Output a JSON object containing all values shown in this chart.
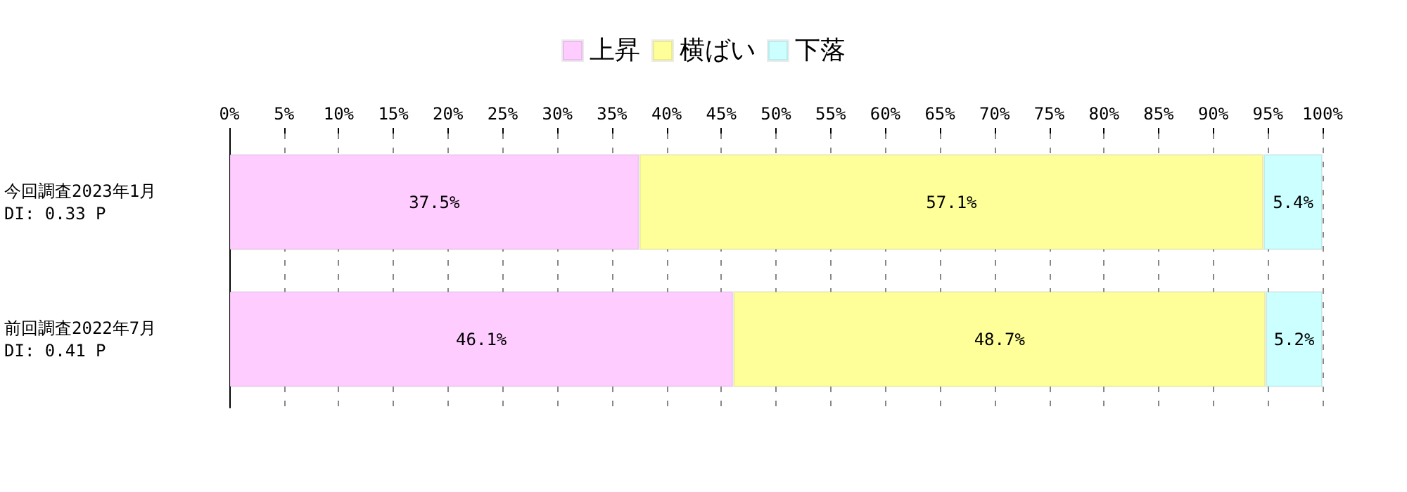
{
  "chart_data": {
    "type": "bar",
    "orientation": "horizontal",
    "stacked": true,
    "categories": [
      "今回調査2023年1月\nDI: 0.33 P",
      "前回調査2022年7月\nDI: 0.41 P"
    ],
    "series": [
      {
        "name": "上昇",
        "color": "#ffccff",
        "values": [
          37.5,
          46.1
        ],
        "value_labels": [
          "37.5%",
          "46.1%"
        ]
      },
      {
        "name": "横ばい",
        "color": "#ffff99",
        "values": [
          57.1,
          48.7
        ],
        "value_labels": [
          "57.1%",
          "48.7%"
        ]
      },
      {
        "name": "下落",
        "color": "#ccffff",
        "values": [
          5.4,
          5.2
        ],
        "value_labels": [
          "5.4%",
          "5.2%"
        ]
      }
    ],
    "xlim": [
      0,
      100
    ],
    "xticks": [
      {
        "value": 0,
        "label": "0%"
      },
      {
        "value": 5,
        "label": "5%"
      },
      {
        "value": 10,
        "label": "10%"
      },
      {
        "value": 15,
        "label": "15%"
      },
      {
        "value": 20,
        "label": "20%"
      },
      {
        "value": 25,
        "label": "25%"
      },
      {
        "value": 30,
        "label": "30%"
      },
      {
        "value": 35,
        "label": "35%"
      },
      {
        "value": 40,
        "label": "40%"
      },
      {
        "value": 45,
        "label": "45%"
      },
      {
        "value": 50,
        "label": "50%"
      },
      {
        "value": 55,
        "label": "55%"
      },
      {
        "value": 60,
        "label": "60%"
      },
      {
        "value": 65,
        "label": "65%"
      },
      {
        "value": 70,
        "label": "70%"
      },
      {
        "value": 75,
        "label": "75%"
      },
      {
        "value": 80,
        "label": "80%"
      },
      {
        "value": 85,
        "label": "85%"
      },
      {
        "value": 90,
        "label": "90%"
      },
      {
        "value": 95,
        "label": "95%"
      },
      {
        "value": 100,
        "label": "100%"
      }
    ],
    "grid": "x",
    "legend": "top"
  }
}
